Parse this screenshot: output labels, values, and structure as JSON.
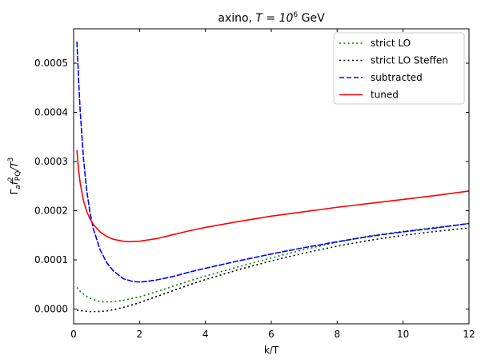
{
  "chart_data": {
    "type": "line",
    "title_main": "axino, ",
    "title_math": "T = 10",
    "title_exp": "6",
    "title_unit": " GeV",
    "xlabel": "k/T",
    "ylabel_main": "Γ",
    "ylabel_sub1": "a",
    "ylabel_mid": "f",
    "ylabel_sup": "2",
    "ylabel_sub2": "PQ",
    "ylabel_tail": "/T",
    "ylabel_exp": "3",
    "xlim": [
      0,
      12
    ],
    "ylim": [
      -3e-05,
      0.00057
    ],
    "x_ticks": [
      {
        "value": 0,
        "label": "0"
      },
      {
        "value": 2,
        "label": "2"
      },
      {
        "value": 4,
        "label": "4"
      },
      {
        "value": 6,
        "label": "6"
      },
      {
        "value": 8,
        "label": "8"
      },
      {
        "value": 10,
        "label": "10"
      },
      {
        "value": 12,
        "label": "12"
      }
    ],
    "y_ticks": [
      {
        "value": 0.0,
        "label": "0.0000"
      },
      {
        "value": 0.0001,
        "label": "0.0001"
      },
      {
        "value": 0.0002,
        "label": "0.0002"
      },
      {
        "value": 0.0003,
        "label": "0.0003"
      },
      {
        "value": 0.0004,
        "label": "0.0004"
      },
      {
        "value": 0.0005,
        "label": "0.0005"
      }
    ],
    "legend_position": "top-right",
    "series": [
      {
        "name": "strict LO",
        "color": "#008000",
        "dash": "dotted",
        "x": [
          0.1,
          0.2,
          0.3,
          0.5,
          0.7,
          0.9,
          1.0,
          1.2,
          1.5,
          2.0,
          2.5,
          3.0,
          3.5,
          4.0,
          5.0,
          6.0,
          7.0,
          8.0,
          9.0,
          10.0,
          11.0,
          12.0
        ],
        "y": [
          4.4e-05,
          3.6e-05,
          3e-05,
          2.2e-05,
          1.7e-05,
          1.45e-05,
          1.45e-05,
          1.5e-05,
          1.75e-05,
          2.5e-05,
          3.5e-05,
          4.6e-05,
          5.7e-05,
          6.7e-05,
          8.6e-05,
          0.000104,
          0.000121,
          0.000136,
          0.000149,
          0.000158,
          0.000166,
          0.000174
        ]
      },
      {
        "name": "strict LO Steffen",
        "color": "#000000",
        "dash": "dotted",
        "x": [
          0.1,
          0.2,
          0.3,
          0.5,
          0.7,
          1.0,
          1.3,
          1.6,
          2.0,
          2.5,
          3.0,
          3.5,
          4.0,
          5.0,
          6.0,
          7.0,
          8.0,
          9.0,
          10.0,
          11.0,
          12.0
        ],
        "y": [
          -2e-06,
          -3e-06,
          -4e-06,
          -5e-06,
          -5e-06,
          -4e-06,
          0.0,
          5e-06,
          1.3e-05,
          2.5e-05,
          3.7e-05,
          4.9e-05,
          6e-05,
          8e-05,
          9.8e-05,
          0.000114,
          0.000128,
          0.00014,
          0.00015,
          0.000158,
          0.000165
        ]
      },
      {
        "name": "subtracted",
        "color": "#0000ff",
        "dash": "dashed",
        "x": [
          0.1,
          0.15,
          0.2,
          0.3,
          0.4,
          0.5,
          0.6,
          0.8,
          1.0,
          1.2,
          1.5,
          1.8,
          2.0,
          2.2,
          2.5,
          3.0,
          3.5,
          4.0,
          5.0,
          6.0,
          7.0,
          8.0,
          9.0,
          10.0,
          11.0,
          12.0
        ],
        "y": [
          0.000543,
          0.000468,
          0.000402,
          0.000305,
          0.00024,
          0.000195,
          0.000163,
          0.000121,
          9.5e-05,
          7.8e-05,
          6.2e-05,
          5.6e-05,
          5.5e-05,
          5.6e-05,
          5.9e-05,
          6.6e-05,
          7.5e-05,
          8.3e-05,
          9.8e-05,
          0.000112,
          0.000125,
          0.000137,
          0.000148,
          0.000157,
          0.000165,
          0.000174
        ]
      },
      {
        "name": "tuned",
        "color": "#ff0000",
        "dash": "solid",
        "x": [
          0.1,
          0.15,
          0.2,
          0.3,
          0.4,
          0.5,
          0.6,
          0.8,
          1.0,
          1.2,
          1.5,
          1.7,
          2.0,
          2.5,
          3.0,
          3.5,
          4.0,
          5.0,
          6.0,
          7.0,
          8.0,
          9.0,
          10.0,
          11.0,
          12.0
        ],
        "y": [
          0.000322,
          0.000283,
          0.000256,
          0.00022,
          0.000198,
          0.000183,
          0.000172,
          0.000157,
          0.000148,
          0.000142,
          0.000138,
          0.000137,
          0.000138,
          0.000143,
          0.000151,
          0.000159,
          0.000166,
          0.000178,
          0.000189,
          0.000198,
          0.000207,
          0.000215,
          0.000223,
          0.000231,
          0.00024
        ]
      }
    ]
  }
}
